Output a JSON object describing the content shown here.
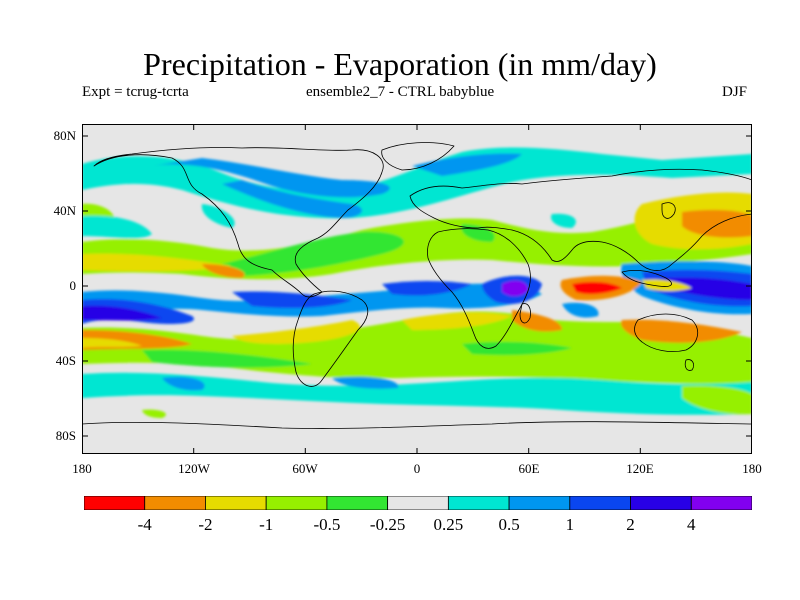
{
  "header": {
    "title": "Precipitation - Evaporation (in mm/day)",
    "expt": "Expt = tcrug-tcrta",
    "ensemble": "ensemble2_7 - CTRL babyblue",
    "season": "DJF"
  },
  "axes": {
    "y_labels": [
      "80N",
      "40N",
      "0",
      "40S",
      "80S"
    ],
    "x_labels": [
      "180",
      "120W",
      "60W",
      "0",
      "60E",
      "120E",
      "180"
    ]
  },
  "colorbar": {
    "colors": [
      "#ff0000",
      "#f28c00",
      "#e6dc00",
      "#96f000",
      "#32e632",
      "#e6e6e6",
      "#00e6d2",
      "#0096f0",
      "#0a46f0",
      "#2800e6",
      "#8200f0"
    ],
    "labels": [
      "-4",
      "-2",
      "-1",
      "-0.5",
      "-0.25",
      "0.25",
      "0.5",
      "1",
      "2",
      "4"
    ]
  }
}
